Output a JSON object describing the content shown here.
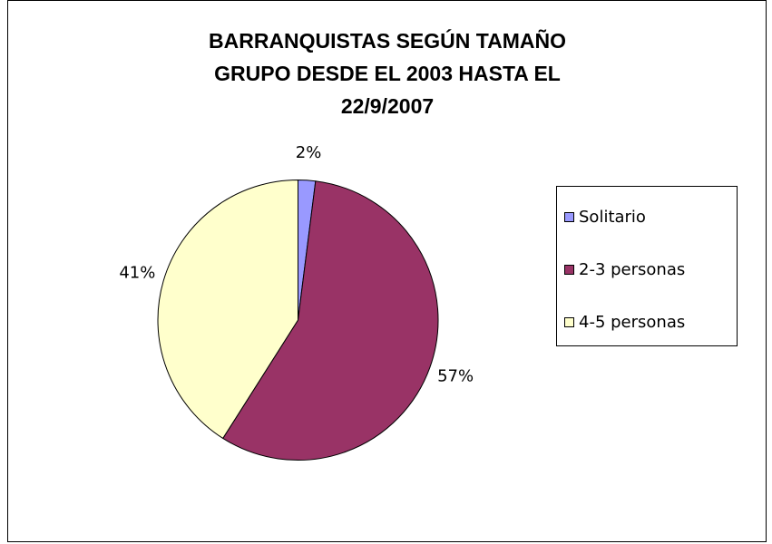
{
  "chart_data": {
    "type": "pie",
    "title": [
      "BARRANQUISTAS SEGÚN TAMAÑO",
      "GRUPO DESDE EL 2003 HASTA EL",
      "22/9/2007"
    ],
    "categories": [
      "Solitario",
      "2-3 personas",
      "4-5 personas"
    ],
    "values": [
      2,
      57,
      41
    ],
    "value_labels": [
      "2%",
      "57%",
      "41%"
    ],
    "colors": [
      "#9999ff",
      "#993366",
      "#ffffcc"
    ],
    "legend": "right"
  }
}
